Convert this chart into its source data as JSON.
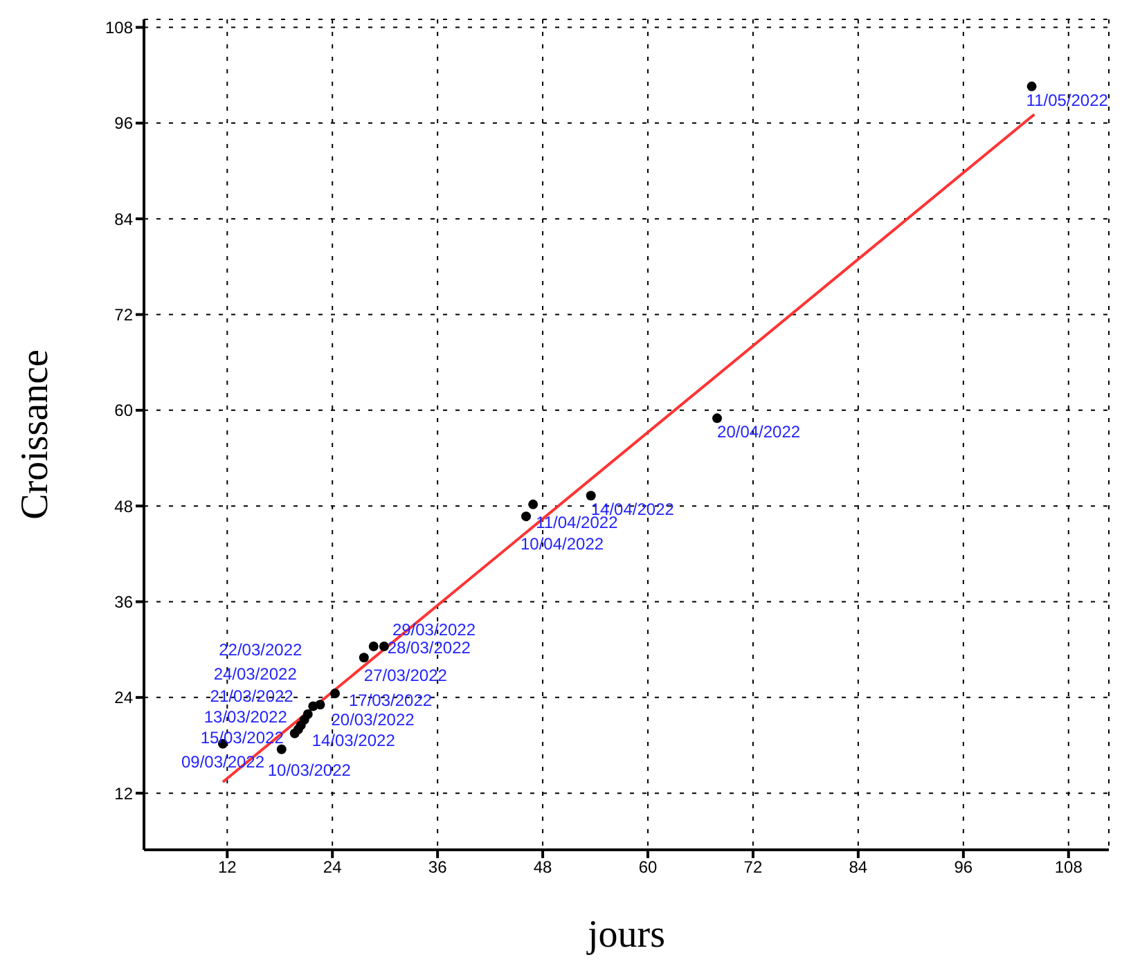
{
  "chart_data": {
    "type": "scatter",
    "xlabel": "jours",
    "ylabel": "Croissance",
    "xlim": [
      2.5,
      112.6
    ],
    "ylim": [
      4.9,
      109
    ],
    "xticks": [
      12,
      24,
      36,
      48,
      60,
      72,
      84,
      96,
      108
    ],
    "yticks": [
      12,
      24,
      36,
      48,
      60,
      72,
      84,
      96,
      108
    ],
    "grid": true,
    "legend": false,
    "marker": "circle",
    "series": [
      {
        "type": "scatter",
        "color": "#000000",
        "x": [
          11.5,
          18.2,
          19.7,
          20.1,
          20.4,
          20.8,
          21.2,
          21.8,
          22.6,
          24.3,
          27.6,
          28.7,
          29.9,
          46.1,
          46.9,
          53.5,
          67.9,
          103.8
        ],
        "values": [
          18.2,
          17.5,
          19.5,
          20.0,
          20.5,
          21.2,
          21.9,
          22.9,
          23.1,
          24.5,
          29.0,
          30.4,
          30.4,
          46.7,
          48.2,
          49.3,
          59.0,
          100.6
        ]
      },
      {
        "type": "line",
        "color": "#ff3333",
        "marker": "none",
        "x": [
          11.5,
          104.1
        ],
        "values": [
          13.4,
          97.1
        ]
      }
    ],
    "annotations": [
      {
        "text": "09/03/2022",
        "x": 11.5,
        "y": 18.2
      },
      {
        "text": "10/03/2022",
        "x": 18.2,
        "y": 17.5
      },
      {
        "text": "15/03/2022",
        "x": 19.7,
        "y": 19.5
      },
      {
        "text": "13/03/2022",
        "x": 20.1,
        "y": 20.0
      },
      {
        "text": "14/03/2022",
        "x": 20.4,
        "y": 20.5
      },
      {
        "text": "21/03/2022",
        "x": 20.8,
        "y": 21.2
      },
      {
        "text": "24/03/2022",
        "x": 21.2,
        "y": 21.9
      },
      {
        "text": "22/03/2022",
        "x": 21.8,
        "y": 22.9
      },
      {
        "text": "20/03/2022",
        "x": 22.6,
        "y": 23.1
      },
      {
        "text": "17/03/2022",
        "x": 24.3,
        "y": 24.5
      },
      {
        "text": "27/03/2022",
        "x": 27.6,
        "y": 29.0
      },
      {
        "text": "28/03/2022",
        "x": 28.7,
        "y": 30.4
      },
      {
        "text": "29/03/2022",
        "x": 29.9,
        "y": 30.4
      },
      {
        "text": "10/04/2022",
        "x": 46.1,
        "y": 46.7
      },
      {
        "text": "11/04/2022",
        "x": 46.9,
        "y": 48.2
      },
      {
        "text": "14/04/2022",
        "x": 53.5,
        "y": 49.3
      },
      {
        "text": "20/04/2022",
        "x": 67.9,
        "y": 59.0
      },
      {
        "text": "11/05/2022",
        "x": 103.8,
        "y": 100.6
      }
    ]
  }
}
